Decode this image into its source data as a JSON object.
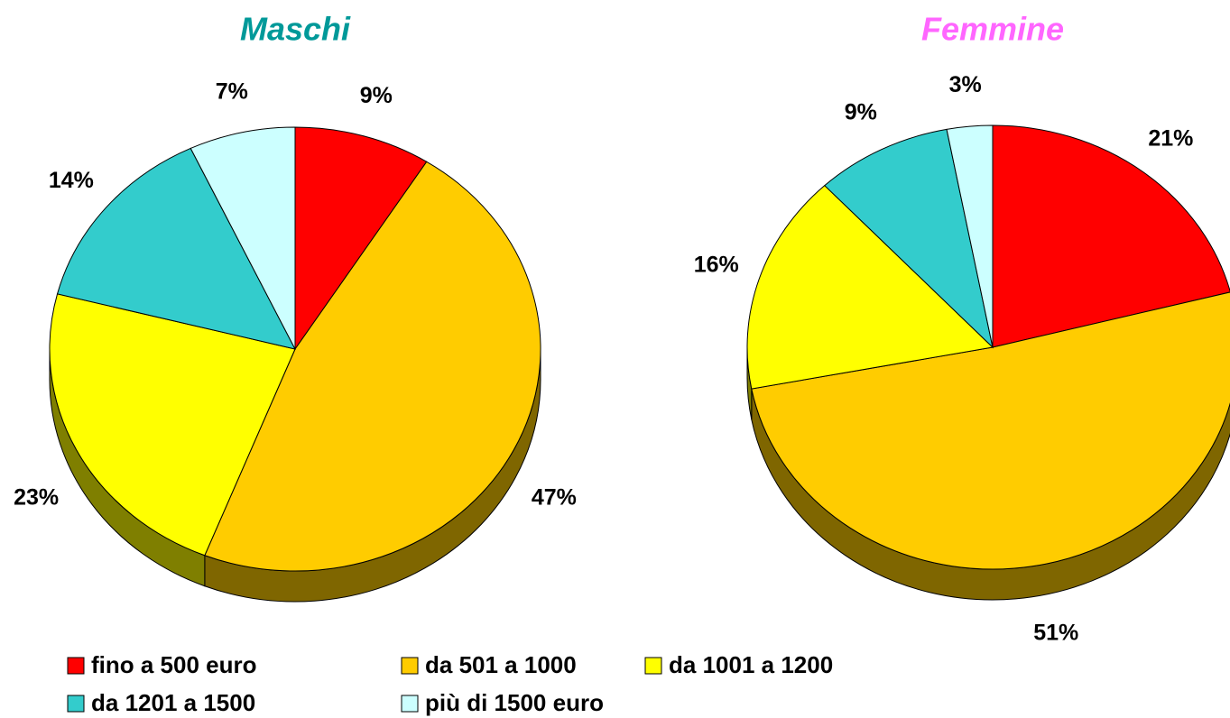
{
  "chart_data": [
    {
      "type": "pie",
      "title": "Maschi",
      "title_color": "#009999",
      "categories": [
        "fino a 500 euro",
        "da 501 a 1000",
        "da 1001 a 1200",
        "da 1201 a 1500",
        "più di 1500 euro"
      ],
      "values": [
        9,
        47,
        23,
        14,
        7
      ],
      "value_labels": [
        "9%",
        "47%",
        "23%",
        "14%",
        "7%"
      ],
      "colors": [
        "#ff0000",
        "#ffcc00",
        "#ffff00",
        "#33cccc",
        "#ccffff"
      ]
    },
    {
      "type": "pie",
      "title": "Femmine",
      "title_color": "#ff66ff",
      "categories": [
        "fino a 500 euro",
        "da 501 a 1000",
        "da 1001 a 1200",
        "da 1201 a 1500",
        "più di 1500 euro"
      ],
      "values": [
        21,
        51,
        16,
        9,
        3
      ],
      "value_labels": [
        "21%",
        "51%",
        "16%",
        "9%",
        "3%"
      ],
      "colors": [
        "#ff0000",
        "#ffcc00",
        "#ffff00",
        "#33cccc",
        "#ccffff"
      ]
    }
  ]
}
